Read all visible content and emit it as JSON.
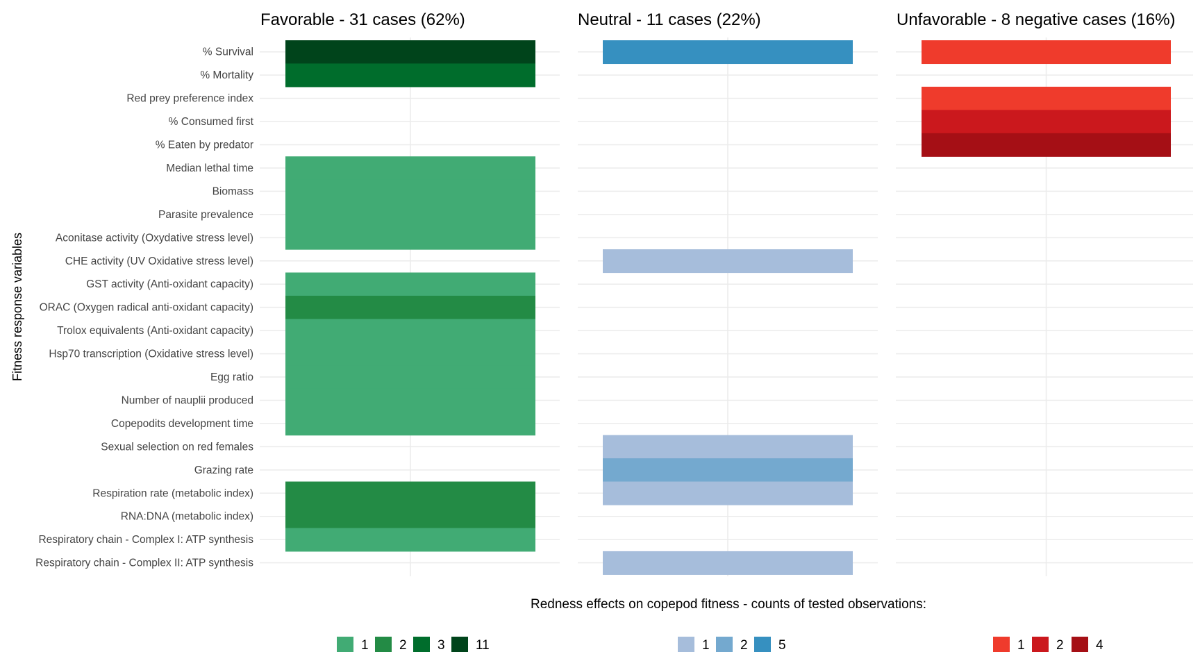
{
  "chart_data": {
    "type": "heatmap",
    "ylabel": "Fitness response variables",
    "legend_title": "Redness effects on copepod fitness - counts of tested observations:",
    "legend_placement": "bottom",
    "grid": true,
    "variables": [
      "% Survival",
      "% Mortality",
      "Red prey preference index",
      "% Consumed first",
      "% Eaten by predator",
      "Median lethal time",
      "Biomass",
      "Parasite prevalence",
      "Aconitase activity (Oxydative stress level)",
      "CHE activity (UV Oxidative stress level)",
      "GST activity (Anti-oxidant capacity)",
      "ORAC (Oxygen radical anti-oxidant capacity)",
      "Trolox equivalents (Anti-oxidant capacity)",
      "Hsp70 transcription (Oxidative stress level)",
      "Egg ratio",
      "Number of nauplii produced",
      "Copepodits development time",
      "Sexual selection on red females",
      "Grazing rate",
      "Respiration rate (metabolic index)",
      "RNA:DNA (metabolic index)",
      "Respiratory chain - Complex I: ATP synthesis",
      "Respiratory chain - Complex II: ATP synthesis"
    ],
    "panels": [
      {
        "title": "Favorable - 31 cases (62%)",
        "legend_levels": [
          {
            "count": "1",
            "color": "#41ab74"
          },
          {
            "count": "2",
            "color": "#238b45"
          },
          {
            "count": "3",
            "color": "#006d2c"
          },
          {
            "count": "11",
            "color": "#00441b"
          }
        ],
        "cells": [
          {
            "variable": "% Survival",
            "count": 11
          },
          {
            "variable": "% Mortality",
            "count": 3
          },
          {
            "variable": "Median lethal time",
            "count": 1
          },
          {
            "variable": "Biomass",
            "count": 1
          },
          {
            "variable": "Parasite prevalence",
            "count": 1
          },
          {
            "variable": "Aconitase activity (Oxydative stress level)",
            "count": 1
          },
          {
            "variable": "GST activity (Anti-oxidant capacity)",
            "count": 1
          },
          {
            "variable": "ORAC (Oxygen radical anti-oxidant capacity)",
            "count": 2
          },
          {
            "variable": "Trolox equivalents (Anti-oxidant capacity)",
            "count": 1
          },
          {
            "variable": "Hsp70 transcription (Oxidative stress level)",
            "count": 1
          },
          {
            "variable": "Egg ratio",
            "count": 1
          },
          {
            "variable": "Number of nauplii produced",
            "count": 1
          },
          {
            "variable": "Copepodits development time",
            "count": 1
          },
          {
            "variable": "Respiration rate (metabolic index)",
            "count": 2
          },
          {
            "variable": "RNA:DNA (metabolic index)",
            "count": 2
          },
          {
            "variable": "Respiratory chain - Complex I: ATP synthesis",
            "count": 1
          }
        ]
      },
      {
        "title": "Neutral - 11 cases (22%)",
        "legend_levels": [
          {
            "count": "1",
            "color": "#a6bddb"
          },
          {
            "count": "2",
            "color": "#74a9cf"
          },
          {
            "count": "5",
            "color": "#3690c0"
          }
        ],
        "cells": [
          {
            "variable": "% Survival",
            "count": 5
          },
          {
            "variable": "CHE activity (UV Oxidative stress level)",
            "count": 1
          },
          {
            "variable": "Sexual selection on red females",
            "count": 1
          },
          {
            "variable": "Grazing rate",
            "count": 2
          },
          {
            "variable": "Respiration rate (metabolic index)",
            "count": 1
          },
          {
            "variable": "Respiratory chain - Complex II: ATP synthesis",
            "count": 1
          }
        ]
      },
      {
        "title": "Unfavorable - 8 negative cases (16%)",
        "legend_levels": [
          {
            "count": "1",
            "color": "#ef3b2c"
          },
          {
            "count": "2",
            "color": "#cb181d"
          },
          {
            "count": "4",
            "color": "#a50f15"
          }
        ],
        "cells": [
          {
            "variable": "% Survival",
            "count": 1
          },
          {
            "variable": "Red prey preference index",
            "count": 1
          },
          {
            "variable": "% Consumed first",
            "count": 2
          },
          {
            "variable": "% Eaten by predator",
            "count": 4
          }
        ]
      }
    ]
  }
}
